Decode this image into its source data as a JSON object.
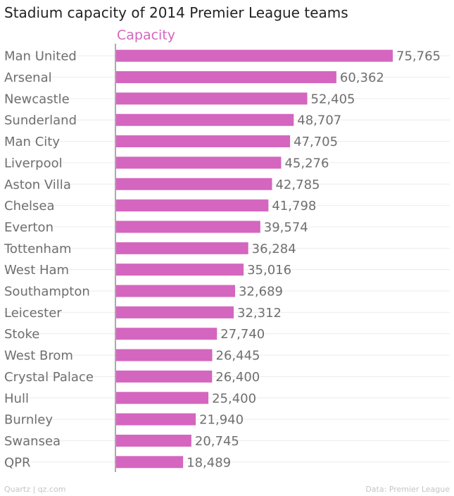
{
  "chart_data": {
    "type": "bar",
    "orientation": "horizontal",
    "title": "Stadium capacity of 2014 Premier League teams",
    "series_label": "Capacity",
    "categories": [
      "Man United",
      "Arsenal",
      "Newcastle",
      "Sunderland",
      "Man City",
      "Liverpool",
      "Aston Villa",
      "Chelsea",
      "Everton",
      "Tottenham",
      "West Ham",
      "Southampton",
      "Leicester",
      "Stoke",
      "West Brom",
      "Crystal Palace",
      "Hull",
      "Burnley",
      "Swansea",
      "QPR"
    ],
    "values": [
      75765,
      60362,
      52405,
      48707,
      47705,
      45276,
      42785,
      41798,
      39574,
      36284,
      35016,
      32689,
      32312,
      27740,
      26445,
      26400,
      25400,
      21940,
      20745,
      18489
    ],
    "value_labels": [
      "75,765",
      "60,362",
      "52,405",
      "48,707",
      "47,705",
      "45,276",
      "42,785",
      "41,798",
      "39,574",
      "36,284",
      "35,016",
      "32,689",
      "32,312",
      "27,740",
      "26,445",
      "26,400",
      "25,400",
      "21,940",
      "20,745",
      "18,489"
    ],
    "xlim": [
      0,
      75765
    ],
    "grid": true,
    "bar_color": "#d466bf"
  },
  "footer": {
    "source_left": "Quartz | qz.com",
    "source_right": "Data: Premier League"
  },
  "colors": {
    "title": "#222222",
    "label": "#6f6f6f",
    "series_label": "#d466bf",
    "footer": "#c4c4c4",
    "grid": "#ececec",
    "axis": "#555555"
  }
}
